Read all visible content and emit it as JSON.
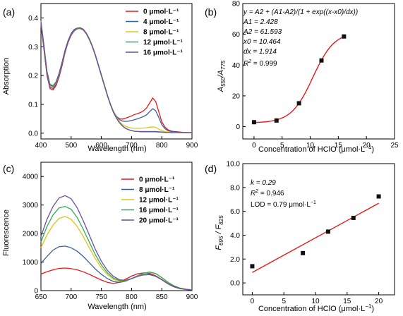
{
  "colors": {
    "red": "#e41a1c",
    "blue": "#3a5f98",
    "yellow": "#e0c21a",
    "green": "#2fae5c",
    "purple": "#6a4fa0",
    "fit": "#e41a1c"
  },
  "chart_data": [
    {
      "panel_label": "(a)",
      "type": "line",
      "xlabel": "Wavelength (nm)",
      "ylabel": "Absorption",
      "xlim": [
        400,
        900
      ],
      "ylim": [
        -0.02,
        0.45
      ],
      "xticks": [
        400,
        500,
        600,
        700,
        800,
        900
      ],
      "yticks": [
        0.0,
        0.1,
        0.2,
        0.3,
        0.4
      ],
      "ytick_labels": [
        "0.0",
        "0.1",
        "0.2",
        "0.3",
        "0.4"
      ],
      "legend_position": "top-right",
      "x": [
        400,
        410,
        420,
        430,
        440,
        450,
        460,
        470,
        480,
        490,
        500,
        510,
        520,
        530,
        540,
        550,
        560,
        570,
        580,
        590,
        600,
        610,
        620,
        630,
        640,
        650,
        660,
        670,
        680,
        690,
        700,
        710,
        720,
        730,
        740,
        750,
        760,
        770,
        780,
        790,
        800,
        810,
        820,
        830,
        840,
        850,
        860,
        870,
        880,
        890,
        900
      ],
      "series": [
        {
          "name": "0 μmol·L⁻¹",
          "color_key": "red",
          "values": [
            0.375,
            0.29,
            0.2,
            0.155,
            0.15,
            0.165,
            0.195,
            0.235,
            0.28,
            0.315,
            0.34,
            0.355,
            0.362,
            0.363,
            0.358,
            0.345,
            0.325,
            0.3,
            0.27,
            0.235,
            0.2,
            0.165,
            0.13,
            0.1,
            0.075,
            0.058,
            0.05,
            0.049,
            0.052,
            0.056,
            0.06,
            0.065,
            0.068,
            0.072,
            0.078,
            0.088,
            0.105,
            0.122,
            0.11,
            0.075,
            0.04,
            0.022,
            0.012,
            0.008,
            0.006,
            0.005,
            0.004,
            0.003,
            0.003,
            0.002,
            0.002
          ]
        },
        {
          "name": "4 μmol·L⁻¹",
          "color_key": "blue",
          "values": [
            0.38,
            0.295,
            0.205,
            0.16,
            0.155,
            0.17,
            0.2,
            0.24,
            0.283,
            0.318,
            0.343,
            0.357,
            0.364,
            0.365,
            0.36,
            0.347,
            0.327,
            0.302,
            0.272,
            0.237,
            0.202,
            0.167,
            0.132,
            0.102,
            0.076,
            0.058,
            0.047,
            0.042,
            0.041,
            0.042,
            0.044,
            0.047,
            0.05,
            0.054,
            0.058,
            0.064,
            0.075,
            0.085,
            0.078,
            0.055,
            0.03,
            0.016,
            0.009,
            0.006,
            0.005,
            0.004,
            0.003,
            0.003,
            0.002,
            0.002,
            0.002
          ]
        },
        {
          "name": "8 μmol·L⁻¹",
          "color_key": "yellow",
          "values": [
            0.385,
            0.3,
            0.21,
            0.165,
            0.16,
            0.175,
            0.205,
            0.245,
            0.287,
            0.32,
            0.345,
            0.359,
            0.365,
            0.366,
            0.361,
            0.348,
            0.328,
            0.303,
            0.273,
            0.238,
            0.203,
            0.168,
            0.133,
            0.102,
            0.075,
            0.055,
            0.04,
            0.03,
            0.024,
            0.02,
            0.018,
            0.017,
            0.017,
            0.017,
            0.018,
            0.019,
            0.021,
            0.022,
            0.02,
            0.014,
            0.009,
            0.006,
            0.004,
            0.003,
            0.003,
            0.002,
            0.002,
            0.002,
            0.002,
            0.002,
            0.002
          ]
        },
        {
          "name": "12 μmol·L⁻¹",
          "color_key": "green",
          "values": [
            0.39,
            0.305,
            0.215,
            0.17,
            0.165,
            0.178,
            0.208,
            0.247,
            0.288,
            0.321,
            0.345,
            0.358,
            0.363,
            0.364,
            0.359,
            0.346,
            0.326,
            0.301,
            0.271,
            0.236,
            0.2,
            0.165,
            0.13,
            0.099,
            0.072,
            0.052,
            0.036,
            0.025,
            0.017,
            0.012,
            0.009,
            0.007,
            0.006,
            0.006,
            0.006,
            0.006,
            0.006,
            0.006,
            0.006,
            0.005,
            0.004,
            0.003,
            0.003,
            0.002,
            0.002,
            0.002,
            0.002,
            0.002,
            0.002,
            0.002,
            0.002
          ]
        },
        {
          "name": "16 μmol·L⁻¹",
          "color_key": "purple",
          "values": [
            0.385,
            0.3,
            0.21,
            0.167,
            0.163,
            0.177,
            0.207,
            0.246,
            0.288,
            0.321,
            0.346,
            0.36,
            0.365,
            0.366,
            0.361,
            0.348,
            0.328,
            0.303,
            0.273,
            0.238,
            0.202,
            0.167,
            0.132,
            0.1,
            0.073,
            0.052,
            0.036,
            0.025,
            0.017,
            0.012,
            0.009,
            0.007,
            0.006,
            0.005,
            0.005,
            0.005,
            0.005,
            0.005,
            0.005,
            0.004,
            0.004,
            0.003,
            0.003,
            0.002,
            0.002,
            0.002,
            0.002,
            0.002,
            0.002,
            0.002,
            0.002
          ]
        }
      ]
    },
    {
      "panel_label": "(b)",
      "type": "scatter",
      "xlabel_prefix": "Concentration of HClO (μmol·L",
      "xlabel_sup": "−1",
      "xlabel_suffix": ")",
      "ylabel_main": "A",
      "ylabel_sub1": "550",
      "ylabel_slash": "/A",
      "ylabel_sub2": "775",
      "xlim": [
        -2,
        25
      ],
      "ylim": [
        -8,
        80
      ],
      "xticks": [
        0,
        5,
        10,
        15,
        20,
        25
      ],
      "yticks": [
        0,
        20,
        40,
        60,
        80
      ],
      "points": {
        "x": [
          0,
          4,
          8,
          12,
          16
        ],
        "y": [
          2.9,
          4.0,
          15.2,
          43.0,
          58.6
        ]
      },
      "fit": {
        "A1": 2.428,
        "A2": 61.593,
        "x0": 10.464,
        "dx": 1.914,
        "x_range": [
          0,
          16
        ]
      },
      "annotations": [
        "y = A2 + (A1-A2)/(1 + exp((x-x0)/dx))",
        "A1 = 2.428",
        "A2 = 61.593",
        "x0 = 10.464",
        "dx = 1.914",
        "R",
        "2",
        " = 0.999"
      ]
    },
    {
      "panel_label": "(c)",
      "type": "line",
      "xlabel": "Wavelength (nm)",
      "ylabel": "Fluorescence",
      "xlim": [
        650,
        900
      ],
      "ylim": [
        0,
        4500
      ],
      "xticks": [
        650,
        700,
        750,
        800,
        850,
        900
      ],
      "yticks": [
        0,
        1000,
        2000,
        3000,
        4000
      ],
      "legend_position": "top-right",
      "x": [
        650,
        660,
        670,
        680,
        690,
        700,
        710,
        720,
        730,
        740,
        750,
        760,
        770,
        780,
        790,
        800,
        810,
        820,
        830,
        840,
        850,
        860,
        870,
        880,
        890,
        900
      ],
      "series": [
        {
          "name": "0 μmol·L⁻¹",
          "color_key": "red",
          "values": [
            580,
            660,
            730,
            780,
            790,
            770,
            730,
            660,
            570,
            470,
            370,
            290,
            250,
            290,
            400,
            510,
            590,
            620,
            600,
            520,
            380,
            240,
            130,
            70,
            40,
            25
          ]
        },
        {
          "name": "8 μmol·L⁻¹",
          "color_key": "blue",
          "values": [
            950,
            1200,
            1420,
            1540,
            1560,
            1500,
            1380,
            1200,
            980,
            760,
            570,
            420,
            320,
            290,
            330,
            420,
            500,
            550,
            560,
            500,
            380,
            250,
            140,
            80,
            45,
            25
          ]
        },
        {
          "name": "12 μmol·L⁻¹",
          "color_key": "yellow",
          "values": [
            1500,
            1950,
            2300,
            2530,
            2600,
            2500,
            2250,
            1900,
            1500,
            1120,
            800,
            560,
            400,
            330,
            340,
            420,
            520,
            600,
            640,
            590,
            450,
            290,
            170,
            90,
            50,
            28
          ]
        },
        {
          "name": "16 μmol·L⁻¹",
          "color_key": "green",
          "values": [
            1700,
            2250,
            2650,
            2900,
            2950,
            2850,
            2560,
            2150,
            1700,
            1260,
            900,
            620,
            440,
            350,
            350,
            420,
            520,
            610,
            650,
            600,
            460,
            300,
            170,
            90,
            50,
            28
          ]
        },
        {
          "name": "20 μmol·L⁻¹",
          "color_key": "purple",
          "values": [
            1900,
            2500,
            2950,
            3250,
            3330,
            3220,
            2900,
            2450,
            1950,
            1450,
            1030,
            710,
            500,
            380,
            360,
            420,
            500,
            560,
            570,
            510,
            390,
            250,
            140,
            75,
            40,
            22
          ]
        }
      ]
    },
    {
      "panel_label": "(d)",
      "type": "scatter",
      "xlabel_prefix": "Concentration of HClO (μmol·L",
      "xlabel_sup": "−1",
      "xlabel_suffix": ")",
      "ylabel_main": "F",
      "ylabel_sub1": "695",
      "ylabel_slash": " / F",
      "ylabel_sub2": "825",
      "xlim": [
        -1.5,
        22.5
      ],
      "ylim": [
        -1,
        10
      ],
      "xticks": [
        0,
        5,
        10,
        15,
        20
      ],
      "yticks": [
        0,
        2,
        4,
        6,
        8,
        10
      ],
      "ytick_labels": [
        "0.0",
        "2.0",
        "4.0",
        "6.0",
        "8.0",
        "10.0"
      ],
      "points": {
        "x": [
          0,
          8,
          12,
          16,
          20
        ],
        "y": [
          1.4,
          2.5,
          4.3,
          5.45,
          7.25
        ]
      },
      "fit": {
        "slope": 0.29,
        "intercept": 0.88,
        "x_range": [
          0,
          20
        ]
      },
      "annotations": [
        "k = 0.29",
        "R",
        "2",
        " = 0.946",
        "LOD = 0.79 μmol·L",
        "−1"
      ]
    }
  ]
}
